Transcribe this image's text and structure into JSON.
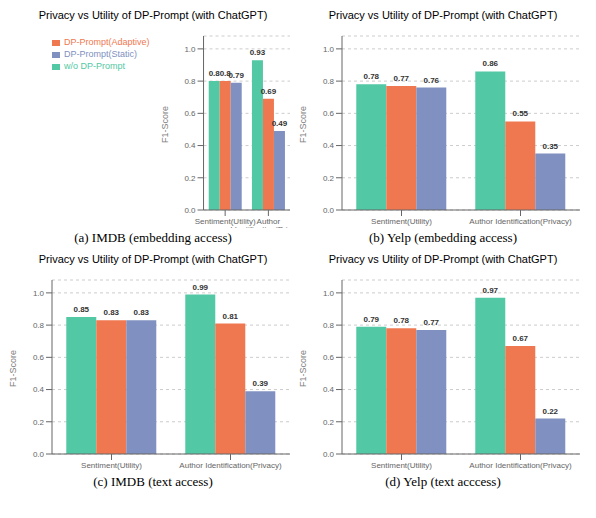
{
  "chart_data": [
    {
      "type": "bar",
      "title": "Privacy vs Utility of DP-Prompt (with ChatGPT)",
      "subtitle": "(a) IMDB (embedding access)",
      "ylabel": "F1-Score",
      "categories": [
        "Sentiment(Utility)",
        "Author Identification(Privacy)"
      ],
      "series": [
        {
          "name": "w/o DP-Prompt",
          "color": "#52C8A4",
          "values": [
            0.8,
            0.93
          ]
        },
        {
          "name": "DP-Prompt(Adaptive)",
          "color": "#F07850",
          "values": [
            0.8,
            0.69
          ]
        },
        {
          "name": "DP-Prompt(Static)",
          "color": "#8090C0",
          "values": [
            0.79,
            0.49
          ]
        }
      ],
      "ylim": [
        0,
        1.08
      ],
      "yticks": [
        {
          "value": 0,
          "label": "0.0"
        },
        0.2,
        0.4,
        0.6,
        0.8,
        {
          "value": 1,
          "label": "1.0"
        }
      ],
      "grid": true,
      "data_labels": true,
      "legend": "upper left"
    },
    {
      "type": "bar",
      "title": "Privacy vs Utility of DP-Prompt (with ChatGPT)",
      "subtitle": "(b) Yelp (embedding access)",
      "ylabel": "F1-Score",
      "categories": [
        "Sentiment(Utility)",
        "Author Identification(Privacy)"
      ],
      "series": [
        {
          "name": "w/o DP-Prompt",
          "color": "#52C8A4",
          "values": [
            0.78,
            0.86
          ]
        },
        {
          "name": "DP-Prompt(Adaptive)",
          "color": "#F07850",
          "values": [
            0.77,
            0.55
          ]
        },
        {
          "name": "DP-Prompt(Static)",
          "color": "#8090C0",
          "values": [
            0.76,
            0.35
          ]
        }
      ],
      "ylim": [
        0,
        1.08
      ],
      "yticks": [
        {
          "value": 0,
          "label": "0.0"
        },
        0.2,
        0.4,
        0.6,
        0.8,
        {
          "value": 1,
          "label": "1.0"
        }
      ],
      "grid": true,
      "data_labels": true
    },
    {
      "type": "bar",
      "title": "Privacy vs Utility of DP-Prompt (with ChatGPT)",
      "subtitle": "(c) IMDB (text access)",
      "ylabel": "F1-Score",
      "categories": [
        "Sentiment(Utility)",
        "Author Identification(Privacy)"
      ],
      "series": [
        {
          "name": "w/o DP-Prompt",
          "color": "#52C8A4",
          "values": [
            0.85,
            0.99
          ]
        },
        {
          "name": "DP-Prompt(Adaptive)",
          "color": "#F07850",
          "values": [
            0.83,
            0.81
          ]
        },
        {
          "name": "DP-Prompt(Static)",
          "color": "#8090C0",
          "values": [
            0.83,
            0.39
          ]
        }
      ],
      "ylim": [
        0,
        1.08
      ],
      "yticks": [
        {
          "value": 0,
          "label": "0.0"
        },
        0.2,
        0.4,
        0.6,
        0.8,
        {
          "value": 1,
          "label": "1.0"
        }
      ],
      "grid": true,
      "data_labels": true
    },
    {
      "type": "bar",
      "title": "Privacy vs Utility of DP-Prompt (with ChatGPT)",
      "subtitle": "(d) Yelp (text acccess)",
      "ylabel": "F1-Score",
      "categories": [
        "Sentiment(Utility)",
        "Author Identification(Privacy)"
      ],
      "series": [
        {
          "name": "w/o DP-Prompt",
          "color": "#52C8A4",
          "values": [
            0.79,
            0.97
          ]
        },
        {
          "name": "DP-Prompt(Adaptive)",
          "color": "#F07850",
          "values": [
            0.78,
            0.67
          ]
        },
        {
          "name": "DP-Prompt(Static)",
          "color": "#8090C0",
          "values": [
            0.77,
            0.22
          ]
        }
      ],
      "ylim": [
        0,
        1.08
      ],
      "yticks": [
        {
          "value": 0,
          "label": "0.0"
        },
        0.2,
        0.4,
        0.6,
        0.8,
        {
          "value": 1,
          "label": "1.0"
        }
      ],
      "grid": true,
      "data_labels": true
    }
  ]
}
